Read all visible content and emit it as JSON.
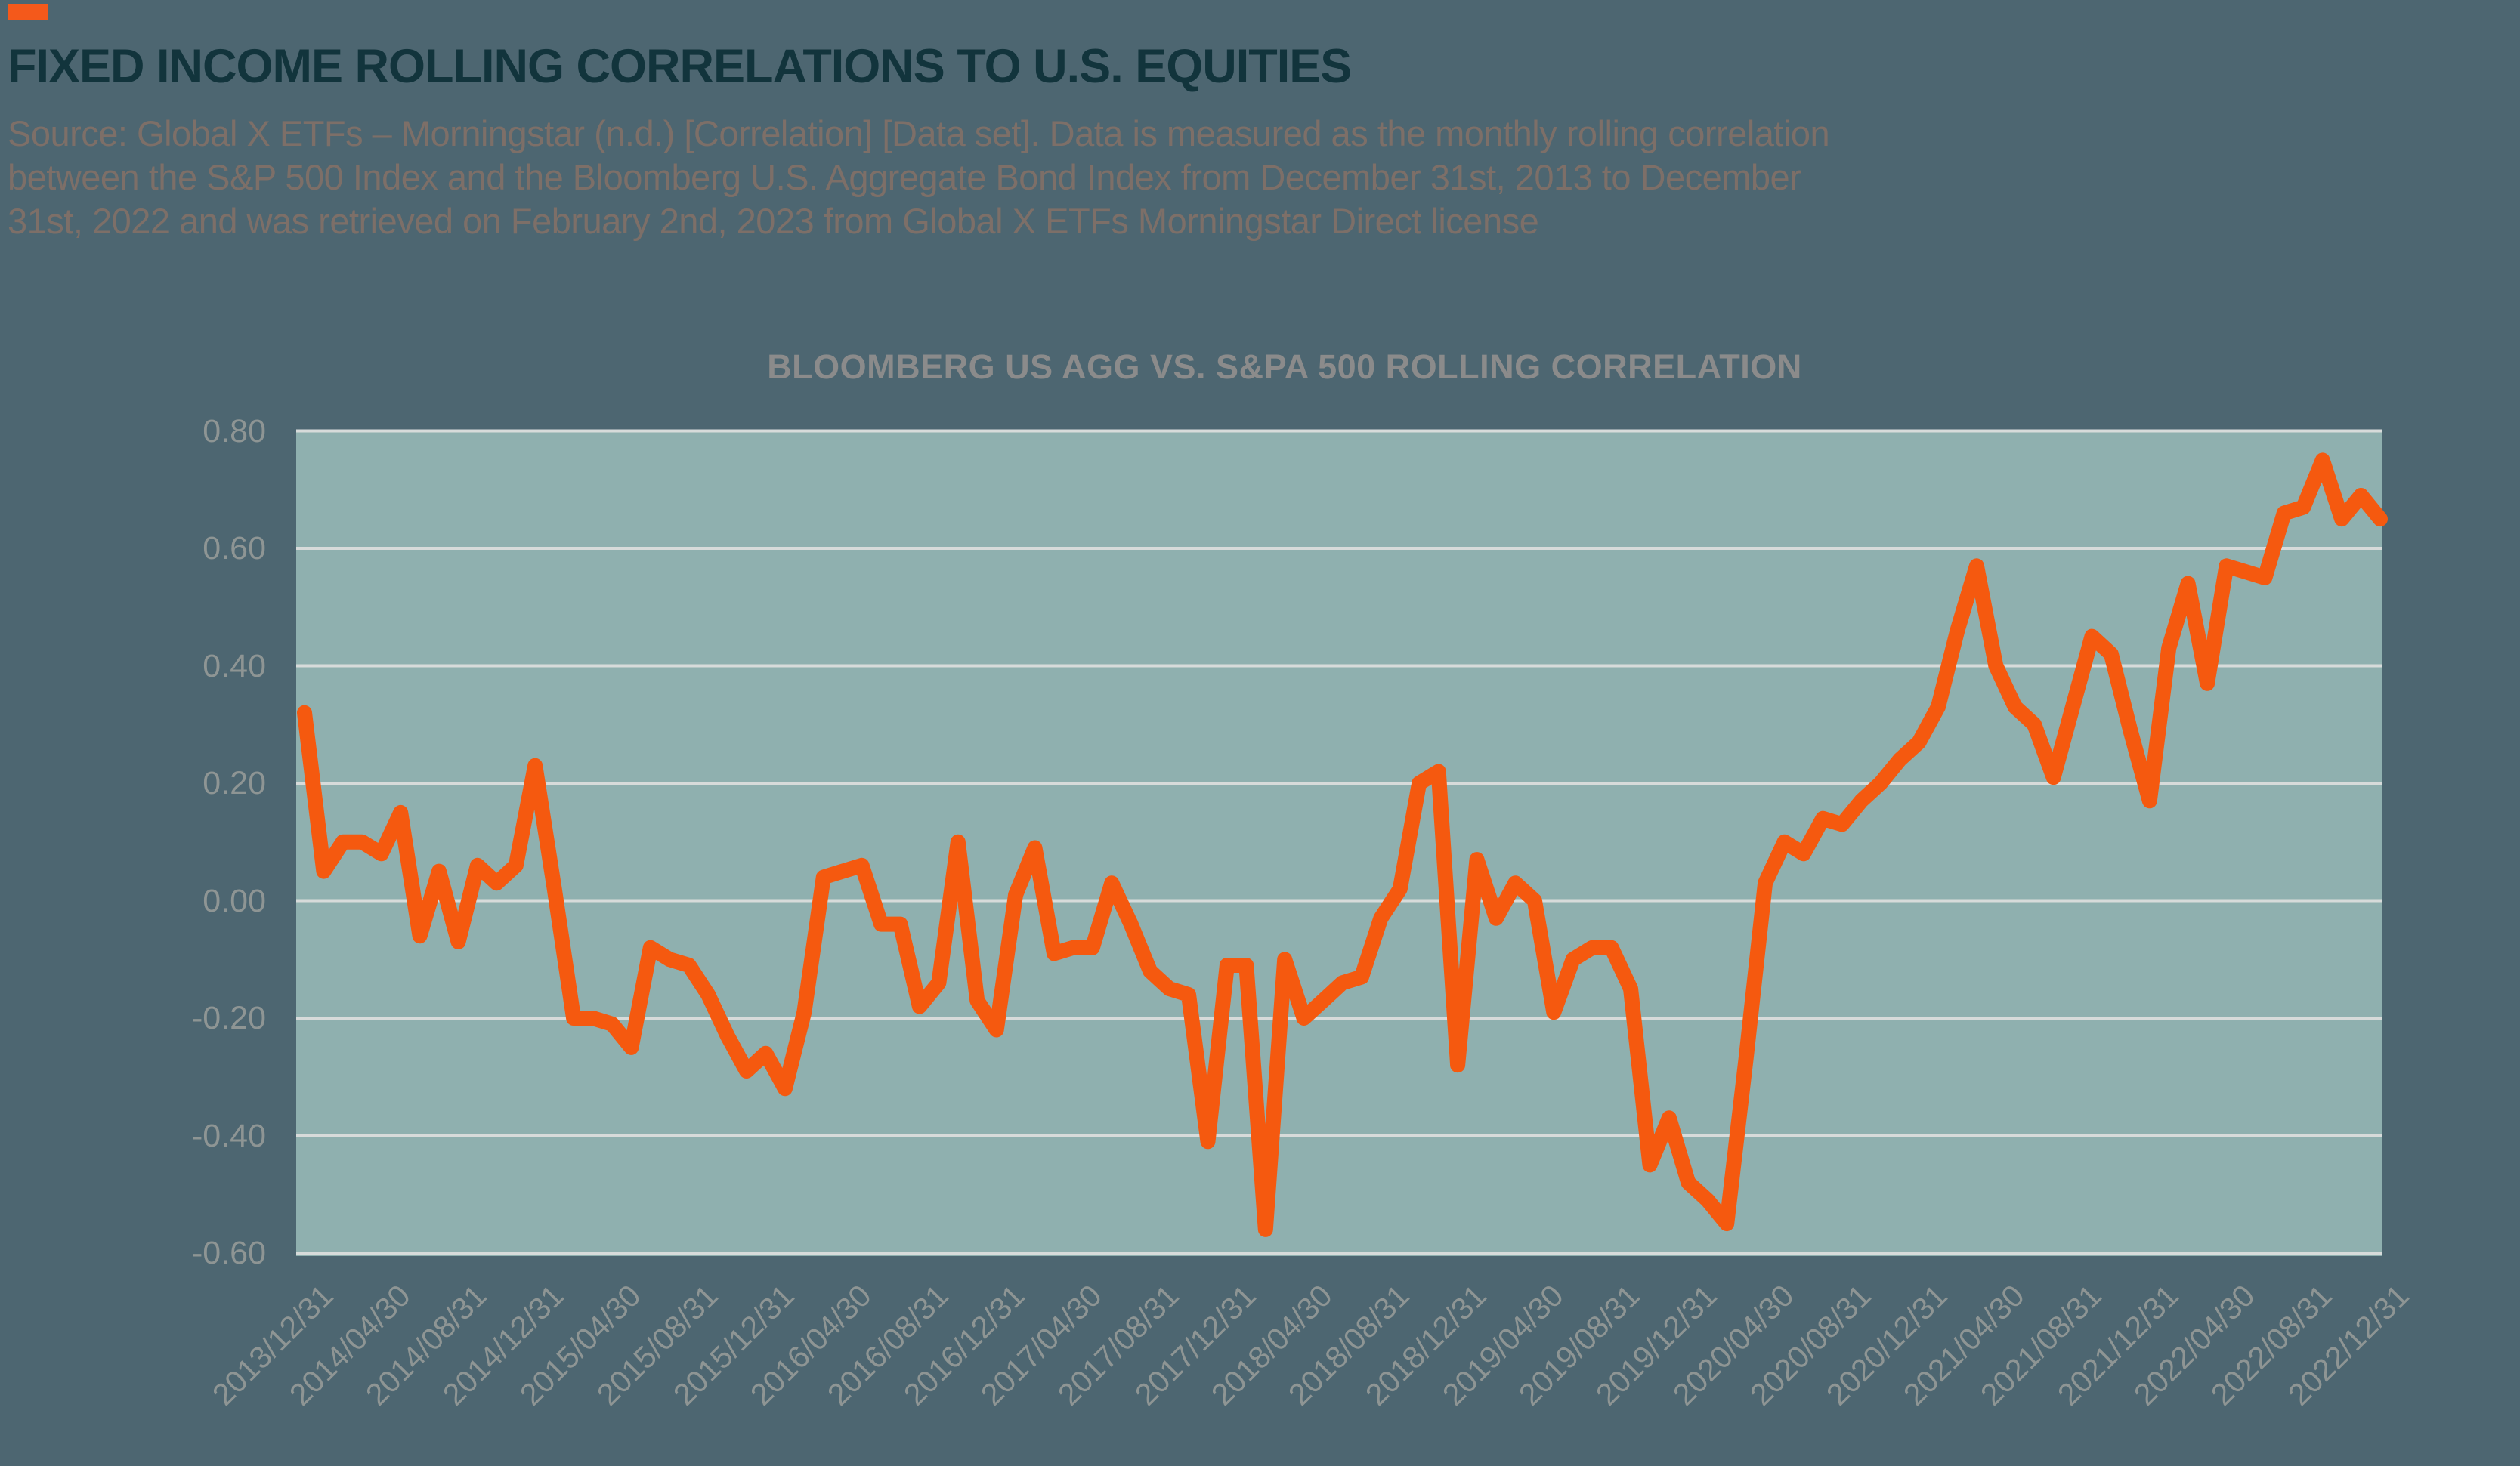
{
  "page": {
    "colors": {
      "background": "#4D6671",
      "brand_orange": "#F4591B",
      "title_teal": "#12343C",
      "source_gray": "#7D6F68",
      "axis_label_gray": "#8E9594"
    }
  },
  "header": {
    "title": "FIXED INCOME ROLLING CORRELATIONS TO U.S. EQUITIES",
    "source_lines": [
      "Source: Global X ETFs – Morningstar (n.d.) [Correlation] [Data set]. Data is measured as the monthly rolling correlation",
      "between the S&P 500 Index and the Bloomberg U.S. Aggregate Bond Index from December 31st, 2013 to December",
      "31st, 2022 and was retrieved on February 2nd, 2023 from Global X ETFs Morningstar Direct license"
    ]
  },
  "chart_data": {
    "type": "line",
    "title": "BLOOMBERG US AGG VS. S&PA 500 ROLLING CORRELATION",
    "series_name": "Bloomberg US Agg vs. S&P 500 rolling correlation",
    "xlabel": "",
    "ylabel": "",
    "ylim": [
      -0.6,
      0.8
    ],
    "y_tick_step": 0.2,
    "grid": true,
    "legend_position": "none",
    "colors": {
      "line": "#F5590F",
      "plot_background": "#8FB0AF",
      "gridline": "#D7DBDA"
    },
    "y_tick_labels": [
      "0.80",
      "0.60",
      "0.40",
      "0.20",
      "0.00",
      "-0.20",
      "-0.40",
      "-0.60"
    ],
    "x_tick_labels": [
      "2013/12/31",
      "2014/04/30",
      "2014/08/31",
      "2014/12/31",
      "2015/04/30",
      "2015/08/31",
      "2015/12/31",
      "2016/04/30",
      "2016/08/31",
      "2016/12/31",
      "2017/04/30",
      "2017/08/31",
      "2017/12/31",
      "2018/04/30",
      "2018/08/31",
      "2018/12/31",
      "2019/04/30",
      "2019/08/31",
      "2019/12/31",
      "2020/04/30",
      "2020/08/31",
      "2020/12/31",
      "2021/04/30",
      "2021/08/31",
      "2021/12/31",
      "2022/04/30",
      "2022/08/31",
      "2022/12/31"
    ],
    "x_tick_every_n_points": 4,
    "x_start": "2013/12/31",
    "x_end": "2022/12/31",
    "x_frequency": "monthly",
    "values": [
      0.32,
      0.05,
      0.1,
      0.1,
      0.08,
      0.15,
      -0.06,
      0.05,
      -0.07,
      0.06,
      0.03,
      0.06,
      0.23,
      0.02,
      -0.2,
      -0.2,
      -0.21,
      -0.25,
      -0.08,
      -0.1,
      -0.11,
      -0.16,
      -0.23,
      -0.29,
      -0.26,
      -0.32,
      -0.19,
      0.04,
      0.05,
      0.06,
      -0.04,
      -0.04,
      -0.18,
      -0.14,
      0.1,
      -0.17,
      -0.22,
      0.01,
      0.09,
      -0.09,
      -0.08,
      -0.08,
      0.03,
      -0.04,
      -0.12,
      -0.15,
      -0.16,
      -0.41,
      -0.11,
      -0.11,
      -0.56,
      -0.1,
      -0.2,
      -0.17,
      -0.14,
      -0.13,
      -0.03,
      0.02,
      0.2,
      0.22,
      -0.28,
      0.07,
      -0.03,
      0.03,
      0.0,
      -0.19,
      -0.1,
      -0.08,
      -0.08,
      -0.15,
      -0.45,
      -0.37,
      -0.48,
      -0.51,
      -0.55,
      -0.27,
      0.03,
      0.1,
      0.08,
      0.14,
      0.13,
      0.17,
      0.2,
      0.24,
      0.27,
      0.33,
      0.46,
      0.57,
      0.4,
      0.33,
      0.3,
      0.21,
      0.33,
      0.45,
      0.42,
      0.29,
      0.17,
      0.43,
      0.54,
      0.37,
      0.57,
      0.56,
      0.55,
      0.66,
      0.67,
      0.75,
      0.65,
      0.69,
      0.65
    ]
  }
}
